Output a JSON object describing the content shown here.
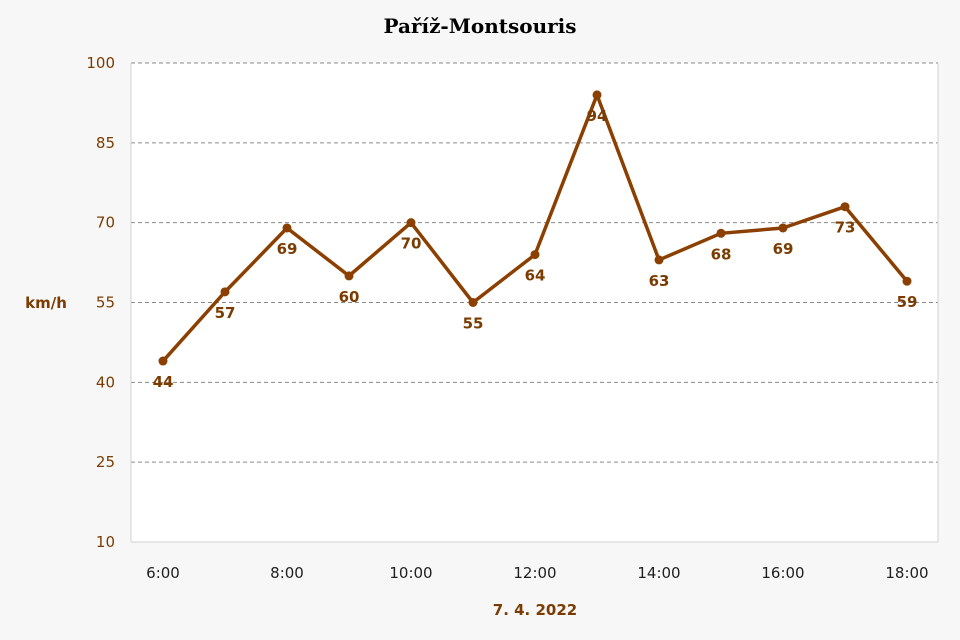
{
  "chart_data": {
    "type": "line",
    "title": "Paříž-Montsouris",
    "xlabel": "7. 4. 2022",
    "ylabel": "km/h",
    "ylim": [
      10,
      100
    ],
    "yticks": [
      10,
      25,
      40,
      55,
      70,
      85,
      100
    ],
    "x": [
      "6:00",
      "7:00",
      "8:00",
      "9:00",
      "10:00",
      "11:00",
      "12:00",
      "13:00",
      "14:00",
      "15:00",
      "16:00",
      "17:00",
      "18:00"
    ],
    "xtick_labels": [
      "6:00",
      "8:00",
      "10:00",
      "12:00",
      "14:00",
      "16:00",
      "18:00"
    ],
    "series": [
      {
        "values": [
          44,
          57,
          69,
          60,
          70,
          55,
          64,
          94,
          63,
          68,
          69,
          73,
          59
        ]
      }
    ],
    "grid": true,
    "colors": {
      "line": "#8b3f00",
      "label": "#7a3c00",
      "background": "#f7f7f7",
      "plot_background": "#ffffff"
    }
  }
}
